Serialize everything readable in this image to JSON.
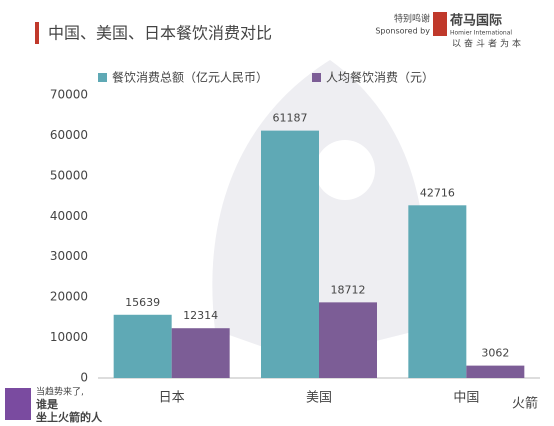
{
  "chart_data": {
    "type": "bar",
    "title": "中国、美国、日本餐饮消费对比",
    "categories": [
      "日本",
      "美国",
      "中国"
    ],
    "series": [
      {
        "name": "餐饮消费总额（亿元人民币）",
        "color": "#5fa9b5",
        "values": [
          15639,
          61187,
          42716
        ]
      },
      {
        "name": "人均餐饮消费（元）",
        "color": "#7c5d96",
        "values": [
          12314,
          18712,
          3062
        ]
      }
    ],
    "ylim": [
      0,
      70000
    ],
    "yticks": [
      0,
      10000,
      20000,
      30000,
      40000,
      50000,
      60000,
      70000
    ],
    "grid": false
  },
  "sponsor": {
    "label": "特别鸣谢",
    "label_en": "Sponsored by",
    "name": "荷马国际",
    "name_en": "Homier International",
    "slogan": "以奋斗者为本"
  },
  "footer": {
    "line1": "当趋势来了,",
    "line2": "谁是",
    "line3": "坐上火箭的人",
    "brand": "火箭"
  }
}
